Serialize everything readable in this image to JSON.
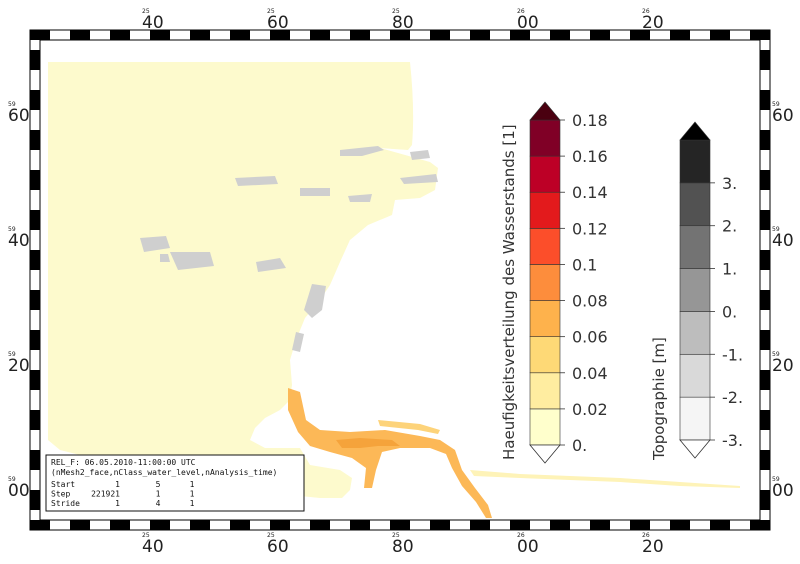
{
  "map": {
    "x_top": [
      {
        "small": "25",
        "big": "40"
      },
      {
        "small": "25",
        "big": "60"
      },
      {
        "small": "25",
        "big": "80"
      },
      {
        "small": "26",
        "big": "00"
      },
      {
        "small": "26",
        "big": "20"
      }
    ],
    "x_bottom": [
      {
        "small": "25",
        "big": "40"
      },
      {
        "small": "25",
        "big": "60"
      },
      {
        "small": "25",
        "big": "80"
      },
      {
        "small": "26",
        "big": "00"
      },
      {
        "small": "26",
        "big": "20"
      }
    ],
    "y_left": [
      {
        "small": "59",
        "big": "60"
      },
      {
        "small": "59",
        "big": "40"
      },
      {
        "small": "59",
        "big": "20"
      },
      {
        "small": "59",
        "big": "00"
      }
    ],
    "y_right": [
      {
        "small": "59",
        "big": "60"
      },
      {
        "small": "59",
        "big": "40"
      },
      {
        "small": "59",
        "big": "20"
      },
      {
        "small": "59",
        "big": "00"
      }
    ]
  },
  "colorbar_main": {
    "title": "Haeufigkeitsverteilung des Wasserstands [1]",
    "ticks": [
      "0.",
      "0.02",
      "0.04",
      "0.06",
      "0.08",
      "0.1",
      "0.12",
      "0.14",
      "0.16",
      "0.18"
    ],
    "colors": [
      "#ffffcc",
      "#ffeda0",
      "#fed976",
      "#feb24c",
      "#fd8d3c",
      "#fc4e2a",
      "#e31a1c",
      "#bd0026",
      "#800026"
    ],
    "top_arrow_color": "#4a0010"
  },
  "colorbar_topo": {
    "title": "Topographie [m]",
    "ticks": [
      "-3.",
      "-2.",
      "-1.",
      "0.",
      "1.",
      "2.",
      "3."
    ],
    "colors": [
      "#f5f5f5",
      "#d9d9d9",
      "#bdbdbd",
      "#969696",
      "#737373",
      "#525252",
      "#252525"
    ],
    "top_arrow_color": "#000000"
  },
  "info_box": {
    "line1": "REL_F: 06.05.2010-11:00:00 UTC",
    "line2": "(nMesh2_face,nClass_water_level,nAnalysis_time)",
    "rows": [
      {
        "label": "Start",
        "a": "1",
        "b": "5",
        "c": "1"
      },
      {
        "label": "Step",
        "a": "221921",
        "b": "1",
        "c": "1"
      },
      {
        "label": "Stride",
        "a": "1",
        "b": "4",
        "c": "1"
      }
    ]
  }
}
